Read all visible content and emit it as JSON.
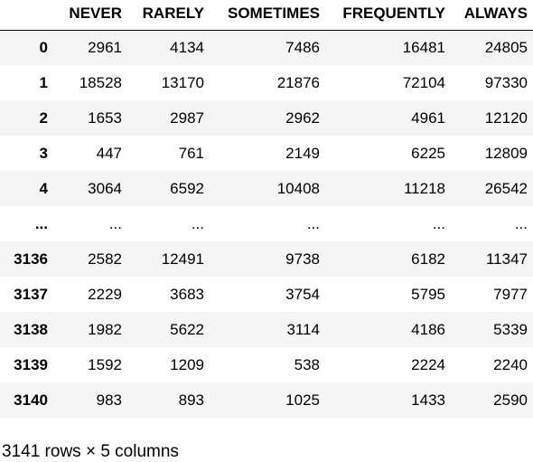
{
  "table": {
    "index_header": "",
    "columns": [
      "NEVER",
      "RARELY",
      "SOMETIMES",
      "FREQUENTLY",
      "ALWAYS"
    ],
    "rows": [
      {
        "index": "0",
        "values": [
          "2961",
          "4134",
          "7486",
          "16481",
          "24805"
        ]
      },
      {
        "index": "1",
        "values": [
          "18528",
          "13170",
          "21876",
          "72104",
          "97330"
        ]
      },
      {
        "index": "2",
        "values": [
          "1653",
          "2987",
          "2962",
          "4961",
          "12120"
        ]
      },
      {
        "index": "3",
        "values": [
          "447",
          "761",
          "2149",
          "6225",
          "12809"
        ]
      },
      {
        "index": "4",
        "values": [
          "3064",
          "6592",
          "10408",
          "11218",
          "26542"
        ]
      },
      {
        "index": "...",
        "values": [
          "...",
          "...",
          "...",
          "...",
          "..."
        ]
      },
      {
        "index": "3136",
        "values": [
          "2582",
          "12491",
          "9738",
          "6182",
          "11347"
        ]
      },
      {
        "index": "3137",
        "values": [
          "2229",
          "3683",
          "3754",
          "5795",
          "7977"
        ]
      },
      {
        "index": "3138",
        "values": [
          "1982",
          "5622",
          "3114",
          "4186",
          "5339"
        ]
      },
      {
        "index": "3139",
        "values": [
          "1592",
          "1209",
          "538",
          "2224",
          "2240"
        ]
      },
      {
        "index": "3140",
        "values": [
          "983",
          "893",
          "1025",
          "1433",
          "2590"
        ]
      }
    ]
  },
  "footer": {
    "shape_text": "3141 rows × 5 columns"
  },
  "colors": {
    "stripe": "#f5f5f5",
    "header_rule": "#000000"
  }
}
